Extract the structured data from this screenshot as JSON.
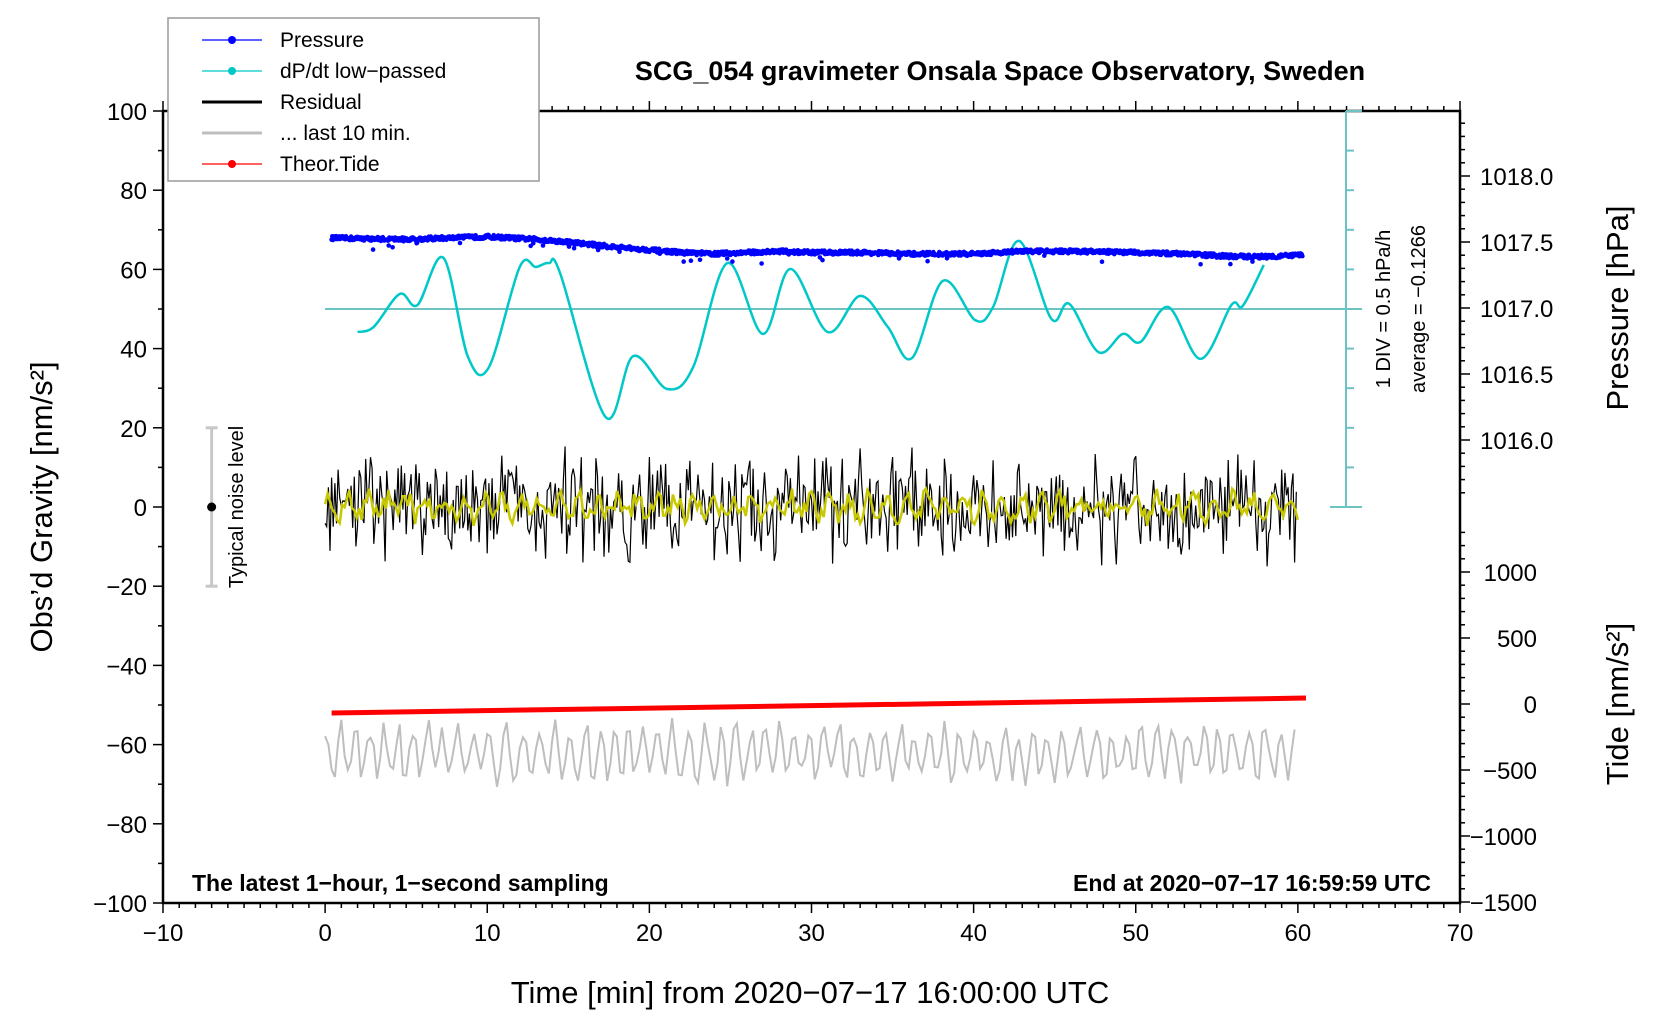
{
  "chart_data": {
    "type": "line",
    "title": "SCG_054 gravimeter Onsala Space Observatory, Sweden",
    "xlabel": "Time [min] from 2020−07−17 16:00:00 UTC",
    "ylabel": "Obs’d Gravity [nm/s²]",
    "ylabel_right_top": "Pressure [hPa]",
    "ylabel_right_bottom": "Tide [nm/s²]",
    "xlim": [
      -10,
      70
    ],
    "ylim": [
      -100,
      100
    ],
    "pressure_lim": [
      1014.5,
      1018.5
    ],
    "tide_lim": [
      -1500,
      1500
    ],
    "grid": false,
    "x_ticks": [
      -10,
      0,
      10,
      20,
      30,
      40,
      50,
      60,
      70
    ],
    "x_tick_labels": [
      "−10",
      "0",
      "10",
      "20",
      "30",
      "40",
      "50",
      "60",
      "70"
    ],
    "y_ticks": [
      100,
      80,
      60,
      40,
      20,
      0,
      -20,
      -40,
      -60,
      -80,
      -100
    ],
    "y_tick_labels": [
      "100",
      "80",
      "60",
      "40",
      "20",
      "0",
      "−20",
      "−40",
      "−60",
      "−80",
      "−100"
    ],
    "pressure_ticks": [
      1018.0,
      1017.5,
      1017.0,
      1016.5,
      1016.0
    ],
    "pressure_tick_labels": [
      "1018.0",
      "1017.5",
      "1017.0",
      "1016.5",
      "1016.0"
    ],
    "tide_ticks": [
      1000,
      500,
      0,
      -500,
      -1000,
      -1500
    ],
    "tide_tick_labels": [
      "1000",
      "500",
      "0",
      "−500",
      "−1000",
      "−1500"
    ],
    "legend": {
      "placement": "top-left",
      "entries": [
        {
          "label": "Pressure",
          "color": "#0000ff",
          "marker": true
        },
        {
          "label": "dP/dt low−passed",
          "color": "#00c8c8",
          "marker": true
        },
        {
          "label": "Residual",
          "color": "#000000",
          "marker": false
        },
        {
          "label": "... last 10 min.",
          "color": "#bebebe",
          "marker": false
        },
        {
          "label": "Theor.Tide",
          "color": "#ff0000",
          "marker": true
        }
      ]
    },
    "annotations": {
      "sampling": "The latest 1−hour, 1−second sampling",
      "end_time": "End at 2020−07−17 16:59:59 UTC",
      "dpdt_scale": "1 DIV = 0.5 hPa/h",
      "dpdt_average": "average = −0.1266",
      "noise_label": "Typical noise level",
      "noise_level": [
        -20,
        20
      ]
    },
    "series": [
      {
        "name": "Pressure",
        "unit": "hPa",
        "color": "#0000ff",
        "x": [
          0.4,
          5,
          10,
          13,
          15,
          18,
          20,
          22,
          24,
          26,
          28,
          30,
          33,
          36,
          40,
          43,
          46,
          50,
          53,
          56,
          58,
          60.3
        ],
        "values": [
          1017.53,
          1017.52,
          1017.54,
          1017.52,
          1017.5,
          1017.46,
          1017.44,
          1017.42,
          1017.41,
          1017.42,
          1017.43,
          1017.42,
          1017.42,
          1017.41,
          1017.41,
          1017.43,
          1017.43,
          1017.42,
          1017.41,
          1017.39,
          1017.39,
          1017.4
        ]
      },
      {
        "name": "dP/dt low-passed",
        "unit": "DIV (1 DIV = 0.5 hPa/h), zero at 50 nm/s²",
        "color": "#00c8c8",
        "zero_level": 50,
        "x": [
          2.0,
          3.0,
          4.6,
          5.7,
          7.3,
          8.8,
          10.1,
          12.0,
          13.0,
          13.8,
          14.5,
          17.3,
          19.0,
          21.1,
          22.7,
          24.8,
          27.0,
          28.7,
          31.0,
          33.0,
          34.7,
          36.2,
          38.1,
          40.1,
          41.2,
          42.8,
          44.8,
          45.9,
          47.7,
          49.2,
          50.3,
          52.0,
          54.0,
          55.9,
          56.6,
          57.9
        ],
        "values": [
          -0.58,
          -0.45,
          0.38,
          0.1,
          1.29,
          -1.2,
          -1.47,
          1.06,
          1.06,
          1.16,
          0.9,
          -2.73,
          -1.19,
          -2.02,
          -1.47,
          1.16,
          -0.63,
          1.01,
          -0.58,
          0.33,
          -0.45,
          -1.24,
          0.71,
          -0.28,
          0.05,
          1.72,
          -0.25,
          0.13,
          -1.09,
          -0.63,
          -0.83,
          0.05,
          -1.26,
          0.1,
          0.08,
          1.11
        ]
      },
      {
        "name": "Residual",
        "unit": "nm/s²",
        "color": "#000000",
        "x_range": [
          0,
          60
        ],
        "center": 0,
        "amplitude": 12
      },
      {
        "name": "Residual (smoothed)",
        "unit": "nm/s²",
        "color": "#c8c800",
        "x_range": [
          0,
          60
        ],
        "center": 0,
        "amplitude": 4
      },
      {
        "name": "... last 10 min.",
        "unit": "nm/s²",
        "color": "#bebebe",
        "x_range": [
          0,
          60
        ],
        "center": -62,
        "amplitude": 8
      },
      {
        "name": "Theor.Tide",
        "unit": "nm/s²",
        "color": "#ff0000",
        "x": [
          0.4,
          60.5
        ],
        "values": [
          -68,
          45
        ]
      }
    ]
  }
}
